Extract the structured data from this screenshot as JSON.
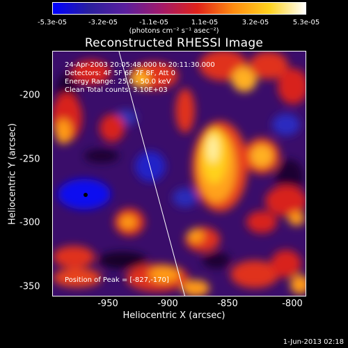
{
  "colorbar": {
    "ticks": [
      "-5.3e-05",
      "-3.2e-05",
      "-1.1e-05",
      "1.1e-05",
      "3.2e-05",
      "5.3e-05"
    ],
    "units": "(photons cm⁻² s⁻¹ asec⁻²)",
    "colors": [
      "#0000ff",
      "#2a1f9e",
      "#5a1f9e",
      "#a21a6a",
      "#e0221a",
      "#ff8c10",
      "#ffd21e",
      "#ffffff"
    ]
  },
  "title": "Reconstructed RHESSI Image",
  "info": {
    "line1": "24-Apr-2003 20:05:48.000 to 20:11:30.000",
    "line2": "Detectors: 4F 5F 6F 7F 8F, Att 0",
    "line3": "Energy Range: 25.0 - 50.0 keV",
    "line4": "Clean    Total counts: 3.10E+03"
  },
  "axes": {
    "y_label": "Heliocentric Y (arcsec)",
    "x_label": "Heliocentric X (arcsec)",
    "y_ticks": [
      "-200",
      "-250",
      "-300",
      "-350"
    ],
    "x_ticks": [
      "-950",
      "-900",
      "-850",
      "-800"
    ]
  },
  "peak_text": "Position of Peak = [-827,-170]",
  "date": "1-Jun-2013 02:18"
}
